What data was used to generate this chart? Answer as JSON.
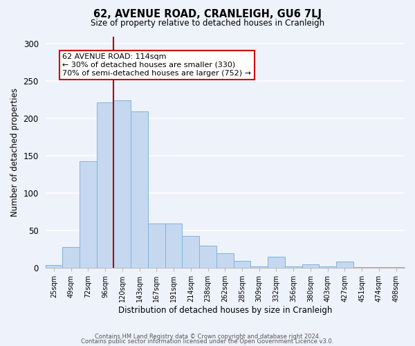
{
  "title": "62, AVENUE ROAD, CRANLEIGH, GU6 7LJ",
  "subtitle": "Size of property relative to detached houses in Cranleigh",
  "xlabel": "Distribution of detached houses by size in Cranleigh",
  "ylabel": "Number of detached properties",
  "categories": [
    "25sqm",
    "49sqm",
    "72sqm",
    "96sqm",
    "120sqm",
    "143sqm",
    "167sqm",
    "191sqm",
    "214sqm",
    "238sqm",
    "262sqm",
    "285sqm",
    "309sqm",
    "332sqm",
    "356sqm",
    "380sqm",
    "403sqm",
    "427sqm",
    "451sqm",
    "474sqm",
    "498sqm"
  ],
  "values": [
    4,
    28,
    143,
    222,
    224,
    210,
    60,
    60,
    43,
    30,
    20,
    10,
    2,
    15,
    2,
    5,
    2,
    9,
    1,
    1,
    1
  ],
  "bar_color": "#c5d8f0",
  "bar_edge_color": "#7fb3d8",
  "vline_color": "#aa0000",
  "annotation_title": "62 AVENUE ROAD: 114sqm",
  "annotation_line1": "← 30% of detached houses are smaller (330)",
  "annotation_line2": "70% of semi-detached houses are larger (752) →",
  "annotation_box_color": "#ffffff",
  "annotation_box_edge": "#cc0000",
  "ylim": [
    0,
    310
  ],
  "yticks": [
    0,
    50,
    100,
    150,
    200,
    250,
    300
  ],
  "footer1": "Contains HM Land Registry data © Crown copyright and database right 2024.",
  "footer2": "Contains public sector information licensed under the Open Government Licence v3.0.",
  "bg_color": "#eef2fa",
  "grid_color": "#ffffff",
  "bar_width": 1.0
}
